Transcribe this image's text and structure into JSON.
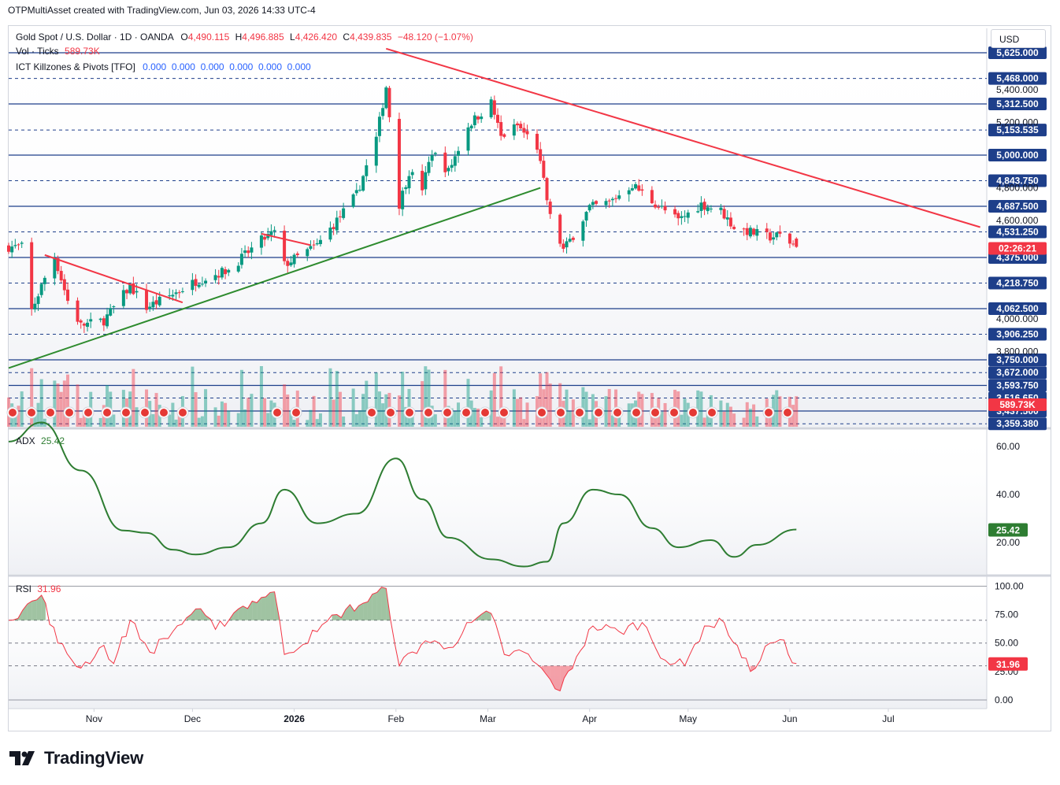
{
  "header": {
    "title": "OTPMultiAsset created with TradingView.com, Jun 03, 2026 14:33 UTC-4"
  },
  "legend": {
    "symbol": "Gold Spot / U.S. Dollar · 1D · OANDA",
    "o_label": "O",
    "o": "4,490.115",
    "h_label": "H",
    "h": "4,496.885",
    "l_label": "L",
    "l": "4,426.420",
    "c_label": "C",
    "c": "4,439.835",
    "change": "−48.120 (−1.07%)",
    "vol_label": "Vol · Ticks",
    "vol": "589.73K",
    "ict_label": "ICT Killzones & Pivots [TFO]",
    "ict_values": "0.000  0.000  0.000  0.000  0.000  0.000"
  },
  "price_axis": {
    "currency": "USD",
    "levels": [
      "5,625.000",
      "5,468.000",
      "5,312.500",
      "5,153.535",
      "5,000.000",
      "4,843.750",
      "4,687.500",
      "4,531.250",
      "4,375.000",
      "4,218.750",
      "4,062.500",
      "3,906.250",
      "3,750.000",
      "3,672.000",
      "3,593.750",
      "3,516.650",
      "3,437.500",
      "3,359.380"
    ],
    "ticks": [
      "5,400.000",
      "5,200.000",
      "4,800.000",
      "4,600.000",
      "4,000.000",
      "3,800.000"
    ],
    "countdown": "02:26:21",
    "volume_tag": "589.73K"
  },
  "adx": {
    "label": "ADX",
    "value": "25.42",
    "axis": [
      "60.00",
      "40.00",
      "20.00"
    ]
  },
  "rsi": {
    "label": "RSI",
    "value": "31.96",
    "axis": [
      "100.00",
      "75.00",
      "50.00",
      "25.00",
      "0.00"
    ]
  },
  "time_axis": [
    "Nov",
    "Dec",
    "2026",
    "Feb",
    "Mar",
    "Apr",
    "May",
    "Jun",
    "Jul"
  ],
  "footer": {
    "brand": "TradingView"
  },
  "colors": {
    "up": "#089981",
    "down": "#f23645",
    "pivot_line": "#1e3f8a",
    "trend_down": "#f23645",
    "trend_up": "#2e8b2e",
    "adx": "#2e7d32",
    "rsi": "#f23645"
  },
  "chart_data": [
    {
      "type": "candlestick",
      "title": "Gold Spot / U.S. Dollar · 1D · OANDA",
      "ylim": [
        3320,
        5700
      ],
      "ohlc_last": {
        "open": 4490.115,
        "high": 4496.885,
        "low": 4426.42,
        "close": 4439.835
      },
      "close_anchors": [
        {
          "x": "2025-10-13",
          "y": 4050
        },
        {
          "x": "2025-10-17",
          "y": 4250
        },
        {
          "x": "2025-10-20",
          "y": 4380
        },
        {
          "x": "2025-10-24",
          "y": 4110
        },
        {
          "x": "2025-10-28",
          "y": 3960
        },
        {
          "x": "2025-11-04",
          "y": 3990
        },
        {
          "x": "2025-11-12",
          "y": 4200
        },
        {
          "x": "2025-11-17",
          "y": 4070
        },
        {
          "x": "2025-11-25",
          "y": 4150
        },
        {
          "x": "2025-12-02",
          "y": 4230
        },
        {
          "x": "2025-12-12",
          "y": 4300
        },
        {
          "x": "2025-12-22",
          "y": 4480
        },
        {
          "x": "2025-12-26",
          "y": 4530
        },
        {
          "x": "2025-12-29",
          "y": 4330
        },
        {
          "x": "2026-01-08",
          "y": 4450
        },
        {
          "x": "2026-01-14",
          "y": 4600
        },
        {
          "x": "2026-01-20",
          "y": 4760
        },
        {
          "x": "2026-01-26",
          "y": 5100
        },
        {
          "x": "2026-01-29",
          "y": 5420
        },
        {
          "x": "2026-02-02",
          "y": 4700
        },
        {
          "x": "2026-02-05",
          "y": 4900
        },
        {
          "x": "2026-02-09",
          "y": 4800
        },
        {
          "x": "2026-02-12",
          "y": 5020
        },
        {
          "x": "2026-02-17",
          "y": 4900
        },
        {
          "x": "2026-02-23",
          "y": 5180
        },
        {
          "x": "2026-03-02",
          "y": 5320
        },
        {
          "x": "2026-03-05",
          "y": 5110
        },
        {
          "x": "2026-03-10",
          "y": 5180
        },
        {
          "x": "2026-03-16",
          "y": 5050
        },
        {
          "x": "2026-03-20",
          "y": 4620
        },
        {
          "x": "2026-03-24",
          "y": 4420
        },
        {
          "x": "2026-03-27",
          "y": 4510
        },
        {
          "x": "2026-04-01",
          "y": 4680
        },
        {
          "x": "2026-04-07",
          "y": 4710
        },
        {
          "x": "2026-04-14",
          "y": 4820
        },
        {
          "x": "2026-04-20",
          "y": 4720
        },
        {
          "x": "2026-04-28",
          "y": 4600
        },
        {
          "x": "2026-05-05",
          "y": 4700
        },
        {
          "x": "2026-05-11",
          "y": 4660
        },
        {
          "x": "2026-05-15",
          "y": 4560
        },
        {
          "x": "2026-05-20",
          "y": 4530
        },
        {
          "x": "2026-05-26",
          "y": 4500
        },
        {
          "x": "2026-05-29",
          "y": 4510
        },
        {
          "x": "2026-06-03",
          "y": 4439.835
        }
      ],
      "horizontal_levels": [
        5625.0,
        5468.0,
        5312.5,
        5153.535,
        5000.0,
        4843.75,
        4687.5,
        4531.25,
        4375.0,
        4218.75,
        4062.5,
        3906.25,
        3750.0,
        3672.0,
        3593.75,
        3516.65,
        3437.5,
        3359.38
      ],
      "trendlines": [
        {
          "color": "red",
          "from": {
            "x": "2026-01-29",
            "y": 5650
          },
          "to": {
            "x": "2026-07-29",
            "y": 4560
          }
        },
        {
          "color": "green",
          "from": {
            "x": "2025-10-06",
            "y": 3700
          },
          "to": {
            "x": "2026-03-17",
            "y": 4800
          }
        },
        {
          "color": "red",
          "from": {
            "x": "2025-10-17",
            "y": 4390
          },
          "to": {
            "x": "2025-11-28",
            "y": 4100
          }
        },
        {
          "color": "red",
          "from": {
            "x": "2025-12-22",
            "y": 4520
          },
          "to": {
            "x": "2026-01-06",
            "y": 4450
          }
        }
      ]
    },
    {
      "type": "line",
      "title": "ADX",
      "ylim": [
        0,
        75
      ],
      "last": 25.42,
      "points": [
        {
          "x": "2025-10-06",
          "y": 62
        },
        {
          "x": "2025-10-16",
          "y": 70
        },
        {
          "x": "2025-10-28",
          "y": 50
        },
        {
          "x": "2025-11-10",
          "y": 25
        },
        {
          "x": "2025-11-17",
          "y": 24
        },
        {
          "x": "2025-11-25",
          "y": 17
        },
        {
          "x": "2025-12-02",
          "y": 15
        },
        {
          "x": "2025-12-12",
          "y": 18
        },
        {
          "x": "2025-12-22",
          "y": 28
        },
        {
          "x": "2025-12-29",
          "y": 42
        },
        {
          "x": "2026-01-08",
          "y": 28
        },
        {
          "x": "2026-01-20",
          "y": 32
        },
        {
          "x": "2026-02-01",
          "y": 55
        },
        {
          "x": "2026-02-09",
          "y": 38
        },
        {
          "x": "2026-02-17",
          "y": 22
        },
        {
          "x": "2026-03-02",
          "y": 13
        },
        {
          "x": "2026-03-12",
          "y": 10
        },
        {
          "x": "2026-03-19",
          "y": 12
        },
        {
          "x": "2026-03-24",
          "y": 28
        },
        {
          "x": "2026-04-02",
          "y": 42
        },
        {
          "x": "2026-04-10",
          "y": 40
        },
        {
          "x": "2026-04-20",
          "y": 26
        },
        {
          "x": "2026-04-28",
          "y": 18
        },
        {
          "x": "2026-05-08",
          "y": 21
        },
        {
          "x": "2026-05-15",
          "y": 14
        },
        {
          "x": "2026-05-22",
          "y": 19
        },
        {
          "x": "2026-06-03",
          "y": 25.42
        }
      ]
    },
    {
      "type": "line",
      "title": "RSI",
      "ylim": [
        -5,
        105
      ],
      "last": 31.96,
      "bands": [
        70,
        50,
        30
      ],
      "points": [
        {
          "x": "2025-10-06",
          "y": 70
        },
        {
          "x": "2025-10-16",
          "y": 92
        },
        {
          "x": "2025-10-21",
          "y": 50
        },
        {
          "x": "2025-10-28",
          "y": 28
        },
        {
          "x": "2025-11-04",
          "y": 48
        },
        {
          "x": "2025-11-07",
          "y": 32
        },
        {
          "x": "2025-11-12",
          "y": 70
        },
        {
          "x": "2025-11-18",
          "y": 42
        },
        {
          "x": "2025-11-25",
          "y": 60
        },
        {
          "x": "2025-12-02",
          "y": 80
        },
        {
          "x": "2025-12-08",
          "y": 62
        },
        {
          "x": "2025-12-15",
          "y": 80
        },
        {
          "x": "2025-12-22",
          "y": 90
        },
        {
          "x": "2025-12-26",
          "y": 95
        },
        {
          "x": "2025-12-29",
          "y": 40
        },
        {
          "x": "2026-01-08",
          "y": 60
        },
        {
          "x": "2026-01-14",
          "y": 75
        },
        {
          "x": "2026-01-22",
          "y": 85
        },
        {
          "x": "2026-01-29",
          "y": 98
        },
        {
          "x": "2026-02-02",
          "y": 30
        },
        {
          "x": "2026-02-10",
          "y": 52
        },
        {
          "x": "2026-02-17",
          "y": 46
        },
        {
          "x": "2026-02-24",
          "y": 68
        },
        {
          "x": "2026-03-02",
          "y": 76
        },
        {
          "x": "2026-03-06",
          "y": 40
        },
        {
          "x": "2026-03-12",
          "y": 42
        },
        {
          "x": "2026-03-20",
          "y": 18
        },
        {
          "x": "2026-03-23",
          "y": 8
        },
        {
          "x": "2026-03-28",
          "y": 38
        },
        {
          "x": "2026-04-02",
          "y": 65
        },
        {
          "x": "2026-04-10",
          "y": 60
        },
        {
          "x": "2026-04-17",
          "y": 68
        },
        {
          "x": "2026-04-24",
          "y": 35
        },
        {
          "x": "2026-04-30",
          "y": 30
        },
        {
          "x": "2026-05-06",
          "y": 65
        },
        {
          "x": "2026-05-12",
          "y": 68
        },
        {
          "x": "2026-05-20",
          "y": 25
        },
        {
          "x": "2026-05-26",
          "y": 50
        },
        {
          "x": "2026-05-29",
          "y": 53
        },
        {
          "x": "2026-06-03",
          "y": 31.96
        }
      ]
    }
  ]
}
